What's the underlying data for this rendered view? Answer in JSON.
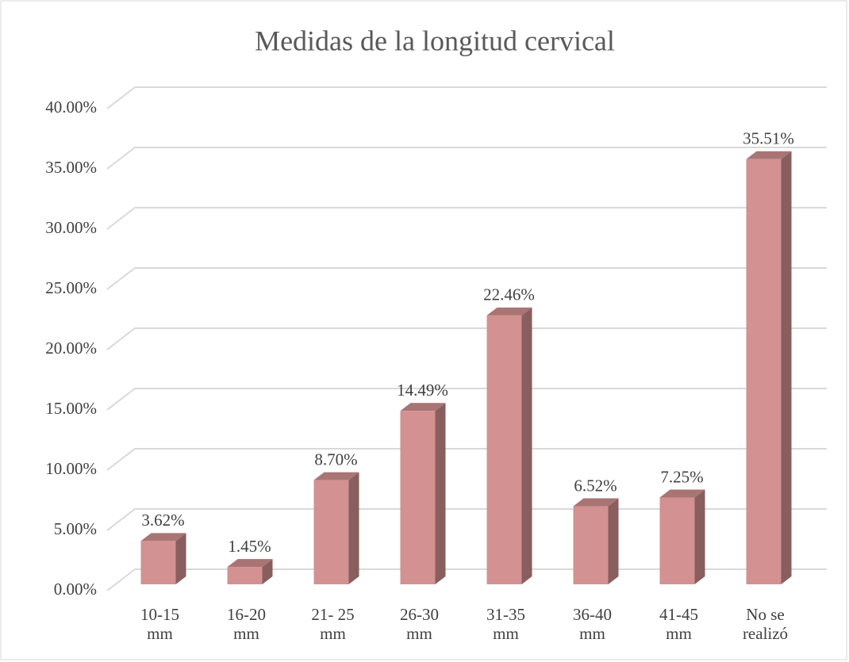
{
  "chart_data": {
    "type": "bar3d",
    "title": "Medidas de la longitud cervical",
    "categories": [
      "10-15\nmm",
      "16-20\nmm",
      "21- 25\nmm",
      "26-30\nmm",
      "31-35\nmm",
      "36-40\nmm",
      "41-45\nmm",
      "No se\nrealizó"
    ],
    "values": [
      3.62,
      1.45,
      8.7,
      14.49,
      22.46,
      6.52,
      7.25,
      35.51
    ],
    "value_labels": [
      "3.62%",
      "1.45%",
      "8.70%",
      "14.49%",
      "22.46%",
      "6.52%",
      "7.25%",
      "35.51%"
    ],
    "color": "#d39191",
    "ylim": [
      0,
      40
    ],
    "yticks": [
      {
        "value": 0,
        "label": "0.00%"
      },
      {
        "value": 5,
        "label": "5.00%"
      },
      {
        "value": 10,
        "label": "10.00%"
      },
      {
        "value": 15,
        "label": "15.00%"
      },
      {
        "value": 20,
        "label": "20.00%"
      },
      {
        "value": 25,
        "label": "25.00%"
      },
      {
        "value": 30,
        "label": "30.00%"
      },
      {
        "value": 35,
        "label": "35.00%"
      },
      {
        "value": 40,
        "label": "40.00%"
      }
    ],
    "grid": true
  }
}
